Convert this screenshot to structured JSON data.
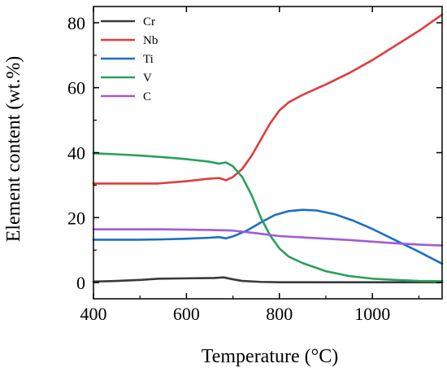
{
  "chart_data": {
    "type": "line",
    "xlabel": "Temperature (°C)",
    "ylabel": "Element content (wt.%)",
    "xlim": [
      400,
      1150
    ],
    "ylim": [
      -5,
      85
    ],
    "x_ticks": [
      400,
      600,
      800,
      1000
    ],
    "y_ticks": [
      0,
      20,
      40,
      60,
      80
    ],
    "x_tick_labels": [
      "400",
      "600",
      "800",
      "1000"
    ],
    "y_tick_labels": [
      "0",
      "20",
      "40",
      "60",
      "80"
    ],
    "grid": false,
    "legend_position": "top-left",
    "series": [
      {
        "name": "Cr",
        "color": "#3a3a3a",
        "points": [
          [
            400,
            0.3
          ],
          [
            450,
            0.5
          ],
          [
            500,
            0.8
          ],
          [
            540,
            1.2
          ],
          [
            600,
            1.3
          ],
          [
            660,
            1.4
          ],
          [
            680,
            1.6
          ],
          [
            700,
            1.0
          ],
          [
            720,
            0.5
          ],
          [
            760,
            0.2
          ],
          [
            800,
            0.1
          ],
          [
            900,
            0.1
          ],
          [
            1000,
            0.1
          ],
          [
            1100,
            0.1
          ],
          [
            1150,
            0.1
          ]
        ]
      },
      {
        "name": "Nb",
        "color": "#e03c3c",
        "points": [
          [
            400,
            30.5
          ],
          [
            450,
            30.5
          ],
          [
            500,
            30.5
          ],
          [
            540,
            30.5
          ],
          [
            600,
            31.2
          ],
          [
            650,
            32.0
          ],
          [
            670,
            32.2
          ],
          [
            685,
            31.5
          ],
          [
            700,
            32.5
          ],
          [
            720,
            35.0
          ],
          [
            740,
            39.0
          ],
          [
            760,
            44.0
          ],
          [
            780,
            49.0
          ],
          [
            800,
            53.0
          ],
          [
            820,
            55.5
          ],
          [
            850,
            57.8
          ],
          [
            900,
            61.0
          ],
          [
            950,
            64.5
          ],
          [
            1000,
            68.5
          ],
          [
            1050,
            73.0
          ],
          [
            1100,
            77.5
          ],
          [
            1150,
            82.5
          ]
        ]
      },
      {
        "name": "Ti",
        "color": "#1a6fc4",
        "points": [
          [
            400,
            13.2
          ],
          [
            450,
            13.2
          ],
          [
            500,
            13.2
          ],
          [
            550,
            13.3
          ],
          [
            600,
            13.5
          ],
          [
            650,
            13.8
          ],
          [
            670,
            14.0
          ],
          [
            685,
            13.6
          ],
          [
            700,
            14.2
          ],
          [
            730,
            16.0
          ],
          [
            760,
            18.5
          ],
          [
            790,
            20.8
          ],
          [
            820,
            22.0
          ],
          [
            850,
            22.4
          ],
          [
            880,
            22.2
          ],
          [
            920,
            21.0
          ],
          [
            960,
            19.0
          ],
          [
            1000,
            16.5
          ],
          [
            1050,
            13.0
          ],
          [
            1100,
            9.5
          ],
          [
            1150,
            5.8
          ]
        ]
      },
      {
        "name": "V",
        "color": "#2aa05a",
        "points": [
          [
            400,
            39.8
          ],
          [
            450,
            39.5
          ],
          [
            500,
            39.1
          ],
          [
            550,
            38.6
          ],
          [
            600,
            38.0
          ],
          [
            650,
            37.2
          ],
          [
            670,
            36.6
          ],
          [
            685,
            37.0
          ],
          [
            700,
            35.8
          ],
          [
            720,
            32.5
          ],
          [
            740,
            27.0
          ],
          [
            760,
            20.0
          ],
          [
            780,
            14.5
          ],
          [
            800,
            10.5
          ],
          [
            820,
            8.0
          ],
          [
            850,
            6.0
          ],
          [
            900,
            3.5
          ],
          [
            950,
            2.0
          ],
          [
            1000,
            1.2
          ],
          [
            1050,
            0.8
          ],
          [
            1100,
            0.5
          ],
          [
            1150,
            0.4
          ]
        ]
      },
      {
        "name": "C",
        "color": "#a05cd6",
        "points": [
          [
            400,
            16.4
          ],
          [
            450,
            16.4
          ],
          [
            500,
            16.4
          ],
          [
            550,
            16.4
          ],
          [
            600,
            16.3
          ],
          [
            650,
            16.2
          ],
          [
            700,
            16.0
          ],
          [
            750,
            15.2
          ],
          [
            800,
            14.3
          ],
          [
            850,
            13.9
          ],
          [
            900,
            13.5
          ],
          [
            950,
            13.1
          ],
          [
            1000,
            12.6
          ],
          [
            1050,
            12.1
          ],
          [
            1100,
            11.7
          ],
          [
            1150,
            11.4
          ]
        ]
      }
    ]
  }
}
